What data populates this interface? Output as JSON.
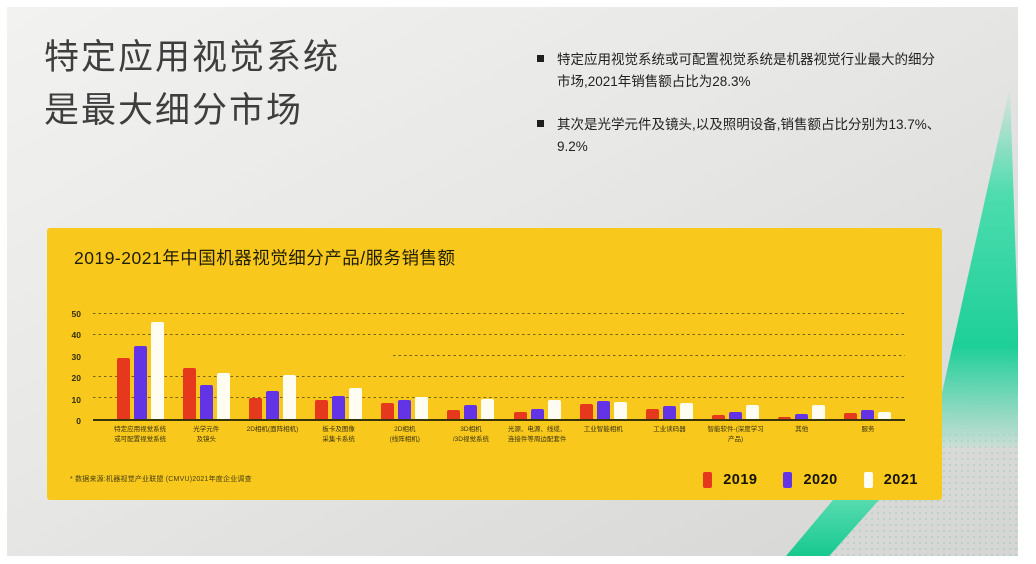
{
  "slide": {
    "title_lines": [
      "特定应用视觉系统",
      "是最大细分市场"
    ],
    "bullets": [
      {
        "lines": [
          "特定应用视觉系统或可配置视觉系统是机器视觉行业最大的细分",
          "市场,2021年销售额占比为28.3%"
        ]
      },
      {
        "lines": [
          "其次是光学元件及镜头,以及照明设备,销售额占比分别为13.7%、9.2%"
        ]
      }
    ]
  },
  "card": {
    "title": "2019-2021年中国机器视觉细分产品/服务销售额",
    "source_note": "* 数据来源:机器视觉产业联盟 (CMVU)2021年度企业调查"
  },
  "chart_data": {
    "type": "bar",
    "title": "2019-2021年中国机器视觉细分产品/服务销售额",
    "categories": [
      "特定应用视觉系统\n或可配置视觉系统",
      "光学元件\n及镜头",
      "2D相机(面阵相机)",
      "板卡及图像\n采集卡系统",
      "2D相机\n(线阵相机)",
      "3D相机\n/3D视觉系统",
      "光源、电源、线缆、\n连接件等周边配套件",
      "工业智能相机",
      "工业读码器",
      "智能软件-(深度学习\n产品)",
      "其他",
      "服务"
    ],
    "series": [
      {
        "name": "2019",
        "color": "#e5381c",
        "values": [
          29,
          24.5,
          10,
          9,
          7.5,
          4.5,
          3.5,
          7,
          5,
          2,
          1,
          3
        ]
      },
      {
        "name": "2020",
        "color": "#6333e6",
        "values": [
          35,
          16,
          13.5,
          11,
          9,
          6.5,
          5,
          8.5,
          6,
          3.5,
          2.5,
          4.5
        ]
      },
      {
        "name": "2021",
        "color": "#fffdf2",
        "values": [
          46,
          22,
          21,
          15,
          10.5,
          9.5,
          9,
          8,
          7.5,
          6.5,
          6.5,
          3.5
        ]
      }
    ],
    "ylim": [
      0,
      50
    ],
    "yticks": [
      0,
      10,
      20,
      30,
      40,
      50
    ],
    "grid": "horizontal dashed",
    "legend_position": "bottom-right"
  },
  "colors": {
    "card_yellow": "#f8c81d",
    "red_2019": "#e5381c",
    "purple_2020": "#6333e6",
    "white_2021": "#fffdf2",
    "teal_decoration": "#1ecf98"
  }
}
